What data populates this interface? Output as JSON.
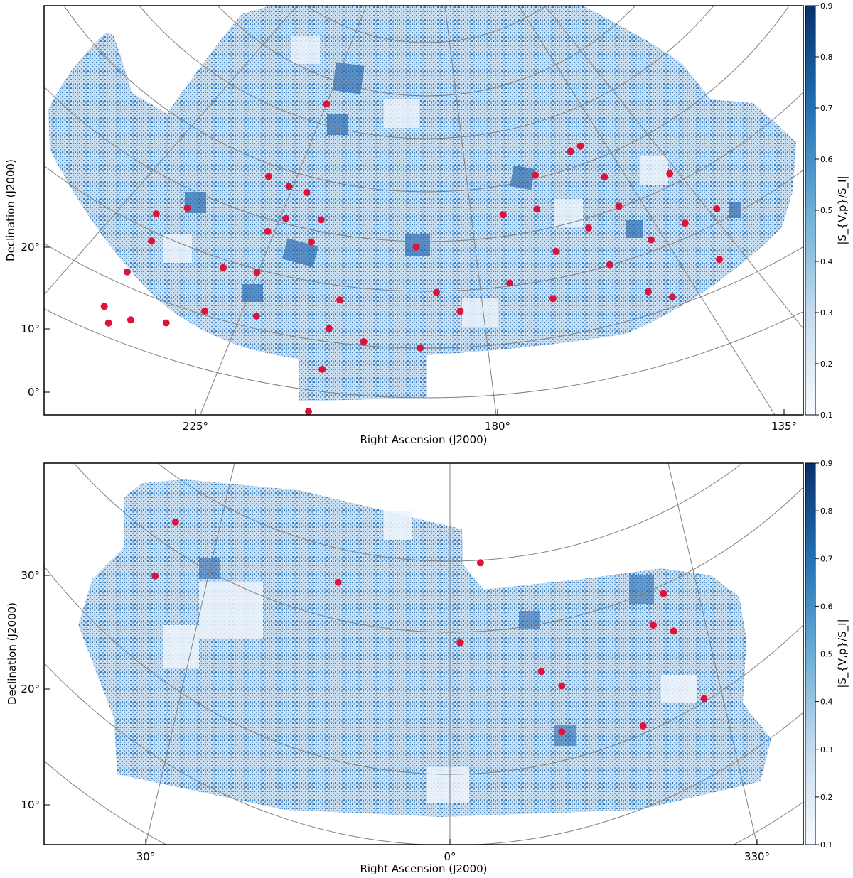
{
  "colors": {
    "map_light": "#e6f0fa",
    "map_mid": "#a9cbe6",
    "map_dark": "#08306b",
    "source": "#dc143c",
    "grid": "#808080",
    "cbar_low": "#f7fbff",
    "cbar_high": "#08306b"
  },
  "chart_data": [
    {
      "type": "scatter",
      "panel": "top",
      "description_units": "sky coordinates (deg); background is a map of fractional polarisation",
      "xlabel": "Right Ascension (J2000)",
      "ylabel": "Declination (J2000)",
      "xticks": [
        "225°",
        "180°",
        "135°"
      ],
      "yticks": [
        "20°",
        "10°",
        "0°"
      ],
      "colorbar": {
        "label": "|S_{V,p}/S_I|",
        "range": [
          0.1,
          0.9
        ],
        "ticks": [
          "0.1",
          "0.2",
          "0.3",
          "0.4",
          "0.5",
          "0.6",
          "0.7",
          "0.8",
          "0.9"
        ]
      },
      "sources_ra_dec": [
        [
          216,
          47
        ],
        [
          242,
          41
        ],
        [
          250,
          44
        ],
        [
          248,
          39
        ],
        [
          251,
          36
        ],
        [
          253,
          32
        ],
        [
          225,
          39
        ],
        [
          220,
          36
        ],
        [
          216,
          34
        ],
        [
          219,
          31
        ],
        [
          213,
          26
        ],
        [
          222,
          30
        ],
        [
          229,
          27
        ],
        [
          250,
          28
        ],
        [
          245,
          26
        ],
        [
          237,
          22
        ],
        [
          230,
          21
        ],
        [
          212,
          29
        ],
        [
          222,
          24
        ],
        [
          220,
          17
        ],
        [
          206,
          16
        ],
        [
          207,
          12
        ],
        [
          201,
          9
        ],
        [
          207,
          6
        ],
        [
          208,
          0
        ],
        [
          194,
          22
        ],
        [
          190,
          15
        ],
        [
          192,
          7
        ],
        [
          173,
          27
        ],
        [
          170,
          21
        ],
        [
          164,
          25
        ],
        [
          160,
          33
        ],
        [
          161,
          20
        ],
        [
          155,
          17
        ],
        [
          158,
          29
        ],
        [
          153,
          25
        ],
        [
          151,
          17
        ],
        [
          179,
          26
        ],
        [
          178,
          16
        ],
        [
          186,
          12
        ],
        [
          171,
          14
        ],
        [
          173,
          32
        ],
        [
          166,
          36
        ],
        [
          164,
          37
        ],
        [
          147,
          36
        ],
        [
          139,
          33
        ],
        [
          146,
          29
        ],
        [
          141,
          25
        ]
      ]
    },
    {
      "type": "scatter",
      "panel": "bottom",
      "description_units": "sky coordinates (deg); background is a map of fractional polarisation",
      "xlabel": "Right Ascension (J2000)",
      "ylabel": "Declination (J2000)",
      "xticks": [
        "30°",
        "0°",
        "330°"
      ],
      "yticks": [
        "30°",
        "20°",
        "10°"
      ],
      "colorbar": {
        "label": "|S_{V,p}/S_I|",
        "range": [
          0.1,
          0.9
        ],
        "ticks": [
          "0.1",
          "0.2",
          "0.3",
          "0.4",
          "0.5",
          "0.6",
          "0.7",
          "0.8",
          "0.9"
        ]
      },
      "sources_ra_dec": [
        [
          27,
          36
        ],
        [
          29,
          32
        ],
        [
          11,
          27
        ],
        [
          357,
          28
        ],
        [
          359,
          21
        ],
        [
          351,
          19
        ],
        [
          349,
          18
        ],
        [
          349,
          14
        ],
        [
          339,
          28
        ],
        [
          340,
          25
        ],
        [
          338,
          25
        ],
        [
          335,
          20
        ],
        [
          341,
          16
        ]
      ]
    }
  ]
}
